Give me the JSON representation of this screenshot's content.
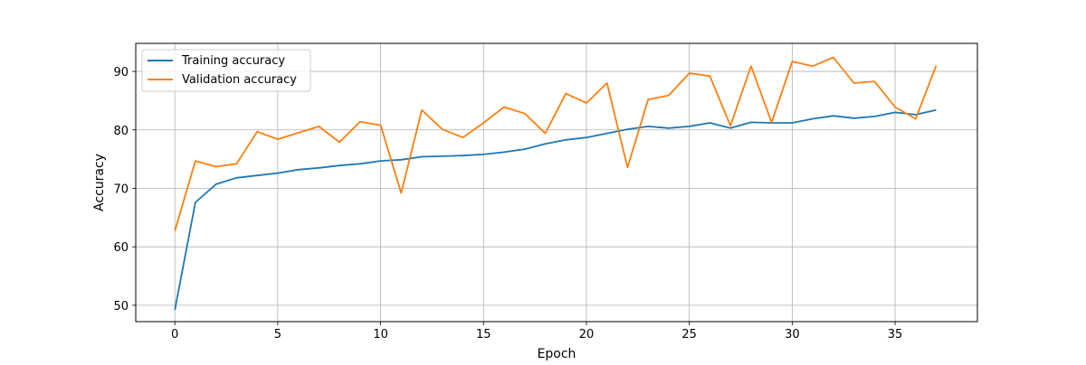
{
  "chart_data": {
    "type": "line",
    "title": "",
    "xlabel": "Epoch",
    "ylabel": "Accuracy",
    "xlim": [
      -1.9,
      39.0
    ],
    "ylim": [
      47.2,
      94.8
    ],
    "xticks": [
      0,
      5,
      10,
      15,
      20,
      25,
      30,
      35
    ],
    "yticks": [
      50,
      60,
      70,
      80,
      90
    ],
    "grid": true,
    "legend_position": "top-left",
    "x": [
      0,
      1,
      2,
      3,
      4,
      5,
      6,
      7,
      8,
      9,
      10,
      11,
      12,
      13,
      14,
      15,
      16,
      17,
      18,
      19,
      20,
      21,
      22,
      23,
      24,
      25,
      26,
      27,
      28,
      29,
      30,
      31,
      32,
      33,
      34,
      35,
      36,
      37
    ],
    "series": [
      {
        "name": "Training accuracy",
        "color": "#1f77b4",
        "values": [
          49.2,
          67.6,
          70.7,
          71.8,
          72.2,
          72.6,
          73.2,
          73.5,
          73.9,
          74.2,
          74.7,
          74.9,
          75.4,
          75.5,
          75.6,
          75.8,
          76.2,
          76.7,
          77.6,
          78.3,
          78.7,
          79.4,
          80.1,
          80.6,
          80.3,
          80.6,
          81.2,
          80.3,
          81.3,
          81.2,
          81.2,
          81.9,
          82.4,
          82.0,
          82.3,
          83.0,
          82.6,
          83.4
        ]
      },
      {
        "name": "Validation accuracy",
        "color": "#ff7f0e",
        "values": [
          62.7,
          74.7,
          73.7,
          74.2,
          79.7,
          78.4,
          79.5,
          80.6,
          77.9,
          81.4,
          80.8,
          69.2,
          83.4,
          80.1,
          78.7,
          81.2,
          83.9,
          82.8,
          79.4,
          86.2,
          84.6,
          88.0,
          73.6,
          85.2,
          85.9,
          89.7,
          89.2,
          80.7,
          90.9,
          81.3,
          91.7,
          90.9,
          92.4,
          88.0,
          88.3,
          83.9,
          81.9,
          91.0
        ]
      }
    ]
  }
}
